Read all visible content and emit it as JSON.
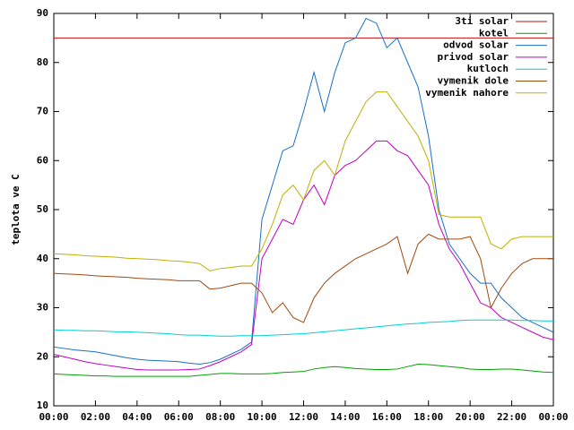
{
  "chart_data": {
    "type": "line",
    "ylabel": "teplota ve C",
    "x": [
      0,
      0.5,
      1,
      1.5,
      2,
      2.5,
      3,
      3.5,
      4,
      4.5,
      5,
      5.5,
      6,
      6.5,
      7,
      7.5,
      8,
      8.5,
      9,
      9.5,
      10,
      10.5,
      11,
      11.5,
      12,
      12.5,
      13,
      13.5,
      14,
      14.5,
      15,
      15.5,
      16,
      16.5,
      17,
      17.5,
      18,
      18.5,
      19,
      19.5,
      20,
      20.5,
      21,
      21.5,
      22,
      22.5,
      23,
      23.5,
      24
    ],
    "xlim": [
      0,
      24
    ],
    "xticks": [
      {
        "value": 0,
        "label": "00:00"
      },
      {
        "value": 2,
        "label": "02:00"
      },
      {
        "value": 4,
        "label": "04:00"
      },
      {
        "value": 6,
        "label": "06:00"
      },
      {
        "value": 8,
        "label": "08:00"
      },
      {
        "value": 10,
        "label": "10:00"
      },
      {
        "value": 12,
        "label": "12:00"
      },
      {
        "value": 14,
        "label": "14:00"
      },
      {
        "value": 16,
        "label": "16:00"
      },
      {
        "value": 18,
        "label": "18:00"
      },
      {
        "value": 20,
        "label": "20:00"
      },
      {
        "value": 22,
        "label": "22:00"
      },
      {
        "value": 24,
        "label": "00:00"
      }
    ],
    "ylim": [
      10,
      90
    ],
    "yticks": [
      10,
      20,
      30,
      40,
      50,
      60,
      70,
      80,
      90
    ],
    "legend": "top-right",
    "series": [
      {
        "name": "3ti solar",
        "color": "#c01010",
        "values": [
          85,
          85,
          85,
          85,
          85,
          85,
          85,
          85,
          85,
          85,
          85,
          85,
          85,
          85,
          85,
          85,
          85,
          85,
          85,
          85,
          85,
          85,
          85,
          85,
          85,
          85,
          85,
          85,
          85,
          85,
          85,
          85,
          85,
          85,
          85,
          85,
          85,
          85,
          85,
          85,
          85,
          85,
          85,
          85,
          85,
          85,
          85,
          85,
          85
        ]
      },
      {
        "name": "kotel",
        "color": "#00a000",
        "values": [
          16.5,
          16.4,
          16.3,
          16.2,
          16.1,
          16.1,
          16,
          16,
          16,
          16,
          16,
          16,
          16,
          16,
          16.2,
          16.4,
          16.6,
          16.6,
          16.5,
          16.5,
          16.5,
          16.6,
          16.8,
          16.9,
          17,
          17.5,
          17.8,
          18,
          17.8,
          17.6,
          17.5,
          17.4,
          17.4,
          17.5,
          18,
          18.5,
          18.4,
          18.2,
          18,
          17.8,
          17.5,
          17.4,
          17.4,
          17.5,
          17.5,
          17.3,
          17.1,
          16.9,
          16.8
        ]
      },
      {
        "name": "odvod solar",
        "color": "#1a70c8",
        "values": [
          22,
          21.7,
          21.4,
          21.2,
          21,
          20.6,
          20.2,
          19.8,
          19.5,
          19.3,
          19.2,
          19.1,
          19,
          18.7,
          18.5,
          18.8,
          19.5,
          20.5,
          21.5,
          23,
          48,
          55,
          62,
          63,
          70,
          78,
          70,
          78,
          84,
          85,
          89,
          88,
          83,
          85,
          80,
          75,
          65,
          50,
          43,
          40,
          37,
          35,
          35,
          32,
          30,
          28,
          27,
          26,
          25
        ]
      },
      {
        "name": "privod solar",
        "color": "#c000c0",
        "values": [
          20.5,
          20,
          19.5,
          19,
          18.6,
          18.3,
          18,
          17.7,
          17.4,
          17.3,
          17.3,
          17.3,
          17.3,
          17.4,
          17.5,
          18.2,
          19,
          20,
          21,
          22.5,
          40,
          44,
          48,
          47,
          52,
          55,
          51,
          57,
          59,
          60,
          62,
          64,
          64,
          62,
          61,
          58,
          55,
          47,
          42,
          39,
          35,
          31,
          30,
          28,
          27,
          26,
          25,
          24,
          23.5
        ]
      },
      {
        "name": "kutloch",
        "color": "#00d0d0",
        "values": [
          25.5,
          25.4,
          25.4,
          25.3,
          25.3,
          25.2,
          25.1,
          25.1,
          25,
          24.9,
          24.8,
          24.7,
          24.5,
          24.4,
          24.4,
          24.3,
          24.2,
          24.2,
          24.3,
          24.3,
          24.3,
          24.4,
          24.5,
          24.6,
          24.7,
          24.9,
          25.1,
          25.3,
          25.5,
          25.7,
          25.9,
          26.1,
          26.3,
          26.5,
          26.7,
          26.8,
          27,
          27.1,
          27.2,
          27.4,
          27.5,
          27.5,
          27.5,
          27.5,
          27.5,
          27.4,
          27.4,
          27.3,
          27.3
        ]
      },
      {
        "name": "vymenik dole",
        "color": "#a04a10",
        "values": [
          37,
          36.9,
          36.8,
          36.7,
          36.5,
          36.4,
          36.3,
          36.2,
          36,
          35.9,
          35.8,
          35.7,
          35.5,
          35.5,
          35.5,
          33.8,
          34,
          34.5,
          35,
          35,
          33,
          29,
          31,
          28,
          27,
          32,
          35,
          37,
          38.5,
          40,
          41,
          42,
          43,
          44.5,
          37,
          43,
          45,
          44,
          44,
          44,
          44.5,
          40,
          30,
          34,
          37,
          39,
          40,
          40,
          40
        ]
      },
      {
        "name": "vymenik nahore",
        "color": "#c0b000",
        "values": [
          41,
          40.9,
          40.8,
          40.6,
          40.5,
          40.4,
          40.3,
          40.1,
          40,
          39.9,
          39.8,
          39.6,
          39.5,
          39.3,
          39,
          37.5,
          38,
          38.2,
          38.5,
          38.5,
          42,
          47,
          53,
          55,
          52,
          58,
          60,
          57,
          64,
          68,
          72,
          74,
          74,
          71,
          68,
          65,
          60,
          49,
          48.5,
          48.5,
          48.5,
          48.5,
          43,
          42,
          44,
          44.5,
          44.5,
          44.5,
          44.5
        ]
      }
    ]
  }
}
